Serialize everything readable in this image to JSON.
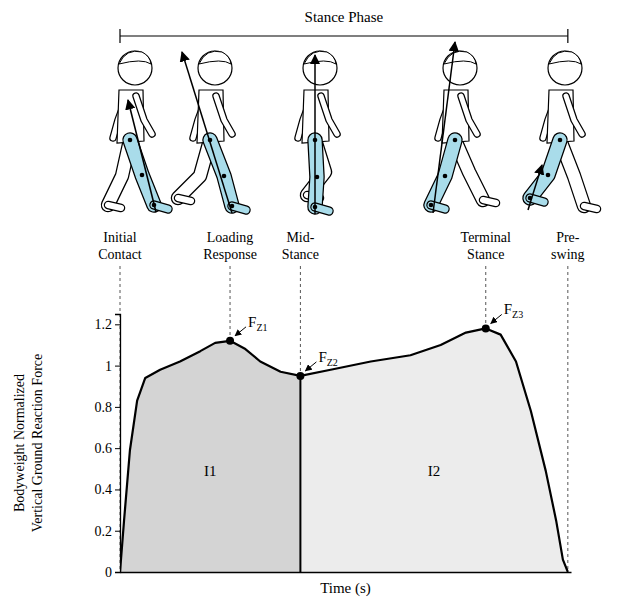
{
  "chart_data": {
    "type": "area",
    "title": "Stance Phase",
    "x_label": "Time (s)",
    "y_label": "Bodyweight Normalized\nVertical Ground Reaction Force",
    "x": [
      0,
      0.9,
      2.2,
      3.8,
      5.6,
      8.9,
      13.3,
      17.8,
      21.1,
      24.4,
      27.8,
      31.1,
      35.6,
      40,
      46.7,
      55.6,
      64.4,
      71.1,
      76.7,
      81.1,
      84.4,
      87.8,
      91.1,
      94.4,
      96.7,
      98.2,
      99.3
    ],
    "values": [
      0,
      0.25,
      0.59,
      0.83,
      0.94,
      0.98,
      1.02,
      1.07,
      1.11,
      1.12,
      1.08,
      1.02,
      0.97,
      0.95,
      0.98,
      1.02,
      1.05,
      1.1,
      1.16,
      1.18,
      1.15,
      1.02,
      0.78,
      0.49,
      0.25,
      0.06,
      0
    ],
    "color": "#000000",
    "xlim": [
      0,
      100
    ],
    "ylim": [
      0,
      1.25
    ],
    "yticks": [
      0,
      0.2,
      0.4,
      0.6,
      0.8,
      1,
      1.2
    ],
    "tick_labels": "y",
    "regions": [
      {
        "label": "I1",
        "from": 0,
        "to": 40,
        "color": "#d4d4d4"
      },
      {
        "label": "I2",
        "from": 40,
        "to": 99.3,
        "color": "#ececec"
      }
    ],
    "phases": [
      {
        "label": "Initial Contact",
        "x": 0
      },
      {
        "label": "Loading Response",
        "x": 24.4
      },
      {
        "label": "Mid-Stance",
        "x": 40
      },
      {
        "label": "Terminal Stance",
        "x": 81.1
      },
      {
        "label": "Pre-swing",
        "x": 99.3
      }
    ],
    "annotations": [
      {
        "text": "F",
        "subscript": "Z1",
        "x": 24.4,
        "y": 1.12
      },
      {
        "text": "F",
        "subscript": "Z2",
        "x": 40,
        "y": 0.95
      },
      {
        "text": "F",
        "subscript": "Z3",
        "x": 81.1,
        "y": 1.18
      }
    ]
  }
}
